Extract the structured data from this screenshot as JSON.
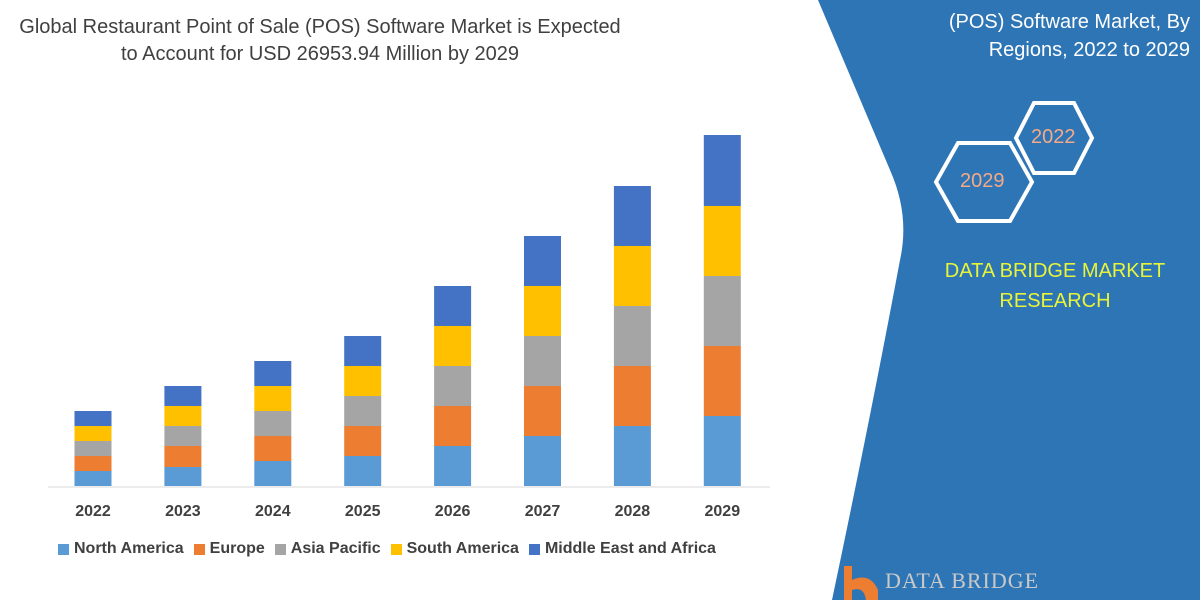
{
  "title": "Global Restaurant Point of Sale (POS) Software Market is Expected to Account for USD 26953.94 Million by 2029",
  "side_panel": {
    "title": "(POS) Software Market, By Regions, 2022 to 2029",
    "hex_labels": [
      "2022",
      "2029"
    ],
    "brand": "DATA BRIDGE MARKET RESEARCH",
    "logo_text": "DATA BRIDGE",
    "color": "#2e75b6"
  },
  "chart_data": {
    "type": "bar",
    "stacked": true,
    "categories": [
      "2022",
      "2023",
      "2024",
      "2025",
      "2026",
      "2027",
      "2028",
      "2029"
    ],
    "series": [
      {
        "name": "North America",
        "color": "#5b9bd5",
        "values": [
          15,
          19,
          25,
          30,
          40,
          50,
          60,
          70
        ]
      },
      {
        "name": "Europe",
        "color": "#ed7d31",
        "values": [
          15,
          21,
          25,
          30,
          40,
          50,
          60,
          70
        ]
      },
      {
        "name": "Asia Pacific",
        "color": "#a5a5a5",
        "values": [
          15,
          20,
          25,
          30,
          40,
          50,
          60,
          70
        ]
      },
      {
        "name": "South America",
        "color": "#ffc000",
        "values": [
          15,
          20,
          25,
          30,
          40,
          50,
          60,
          70
        ]
      },
      {
        "name": "Middle East and Africa",
        "color": "#4472c4",
        "values": [
          15,
          20,
          25,
          30,
          40,
          50,
          60,
          71
        ]
      }
    ],
    "y_axis_shown": false,
    "grid": false,
    "legend_position": "bottom"
  }
}
